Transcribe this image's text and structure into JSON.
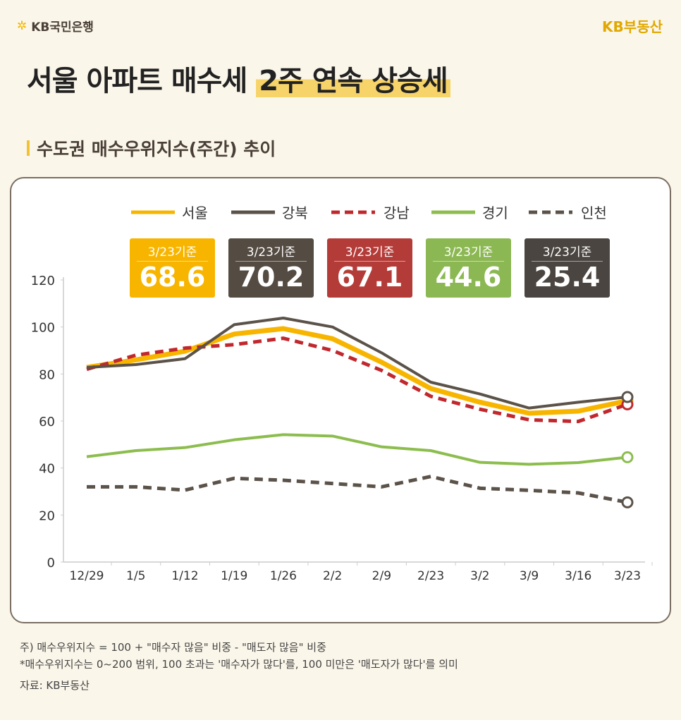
{
  "brand_left": "KB국민은행",
  "brand_right": "KB부동산",
  "title_part1": "서울 아파트 매수세",
  "title_part2": "2주 연속 상승세",
  "subtitle": "수도권 매수우위지수(주간) 추이",
  "colors": {
    "서울": "#f8b500",
    "강북": "#5b5249",
    "강남": "#c0282d",
    "경기": "#8cbd4e",
    "인천": "#5b5249"
  },
  "badges": [
    {
      "date": "3/23기준",
      "value": "68.6",
      "color": "#f8b500"
    },
    {
      "date": "3/23기준",
      "value": "70.2",
      "color": "#544b42"
    },
    {
      "date": "3/23기준",
      "value": "67.1",
      "color": "#b43c38"
    },
    {
      "date": "3/23기준",
      "value": "44.6",
      "color": "#8cb853"
    },
    {
      "date": "3/23기준",
      "value": "25.4",
      "color": "#4a4540"
    }
  ],
  "chart_data": {
    "type": "line",
    "categories": [
      "12/29",
      "1/5",
      "1/12",
      "1/19",
      "1/26",
      "2/2",
      "2/9",
      "2/23",
      "3/2",
      "3/9",
      "3/16",
      "3/23"
    ],
    "ylim": [
      0,
      120
    ],
    "yticks": [
      0,
      20,
      40,
      60,
      80,
      100,
      120
    ],
    "grid": false,
    "legend": "top",
    "series": [
      {
        "name": "서울",
        "style": "solid",
        "values": [
          82.8,
          86,
          89.7,
          97,
          99.3,
          95,
          85,
          73.8,
          68,
          63.3,
          64.2,
          68.6
        ]
      },
      {
        "name": "강북",
        "style": "solid",
        "values": [
          82.8,
          84,
          86.5,
          101,
          103.8,
          100,
          89,
          76.5,
          71.5,
          65.5,
          68,
          70.2
        ]
      },
      {
        "name": "강남",
        "style": "dashed",
        "values": [
          82,
          88,
          91,
          92.5,
          95.2,
          90,
          81.5,
          70.5,
          65,
          60.5,
          59.8,
          67.1
        ]
      },
      {
        "name": "경기",
        "style": "solid",
        "values": [
          44.8,
          47.4,
          48.7,
          52,
          54.2,
          53.6,
          49,
          47.4,
          42.4,
          41.6,
          42.3,
          44.6
        ]
      },
      {
        "name": "인천",
        "style": "dashed",
        "values": [
          32,
          32,
          30.6,
          35.6,
          34.8,
          33.4,
          32,
          36.4,
          31.4,
          30.5,
          29.4,
          25.4
        ]
      }
    ]
  },
  "notes": [
    "주) 매수우위지수 = 100 + \"매수자 많음\" 비중 - \"매도자 많음\" 비중",
    "*매수우위지수는 0~200 범위, 100 초과는 '매수자가 많다'를, 100 미만은 '매도자가 많다'를 의미",
    "자료: KB부동산"
  ]
}
